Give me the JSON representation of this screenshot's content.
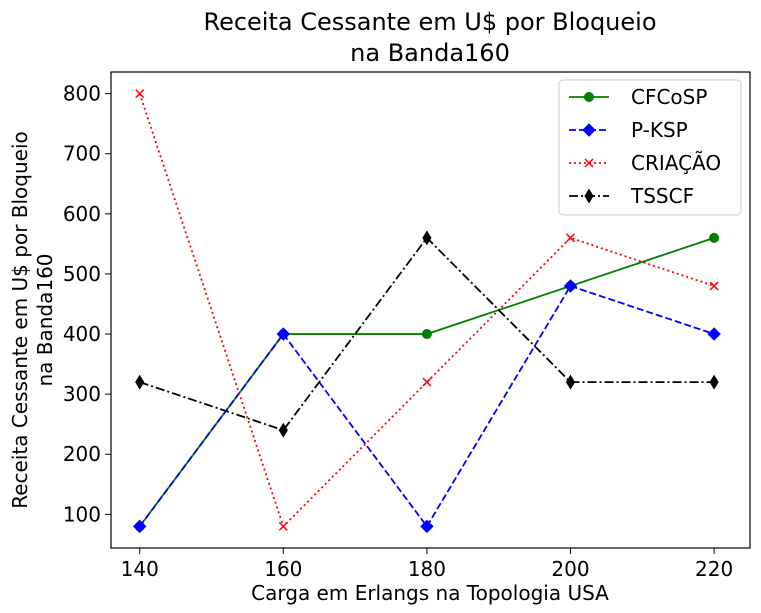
{
  "chart_data": {
    "type": "line",
    "title_line1": "Receita Cessante em U$ por Bloqueio",
    "title_line2": "na Banda160",
    "xlabel": "Carga em Erlangs na Topologia USA",
    "ylabel_line1": "Receita Cessante em U$ por Bloqueio",
    "ylabel_line2": "na Banda160",
    "x": [
      140,
      160,
      180,
      200,
      220
    ],
    "x_ticks": [
      "140",
      "160",
      "180",
      "200",
      "220"
    ],
    "y_ticks": [
      "100",
      "200",
      "300",
      "400",
      "500",
      "600",
      "700",
      "800"
    ],
    "xlim": [
      136,
      225
    ],
    "ylim": [
      44,
      836
    ],
    "grid": false,
    "legend_position": "top-right",
    "series": [
      {
        "name": "CFCoSP",
        "values": [
          80,
          400,
          400,
          480,
          560
        ],
        "color": "#008000",
        "dash": "solid",
        "marker": "circle"
      },
      {
        "name": "P-KSP",
        "values": [
          80,
          400,
          80,
          480,
          400
        ],
        "color": "#0000ff",
        "dash": "dashed",
        "marker": "diamond"
      },
      {
        "name": "CRIAÇÃO",
        "values": [
          800,
          80,
          320,
          560,
          480
        ],
        "color": "#ff0000",
        "dash": "dotted",
        "marker": "x"
      },
      {
        "name": "TSSCF",
        "values": [
          320,
          240,
          560,
          320,
          320
        ],
        "color": "#000000",
        "dash": "dashdot",
        "marker": "thin-diamond"
      }
    ]
  }
}
